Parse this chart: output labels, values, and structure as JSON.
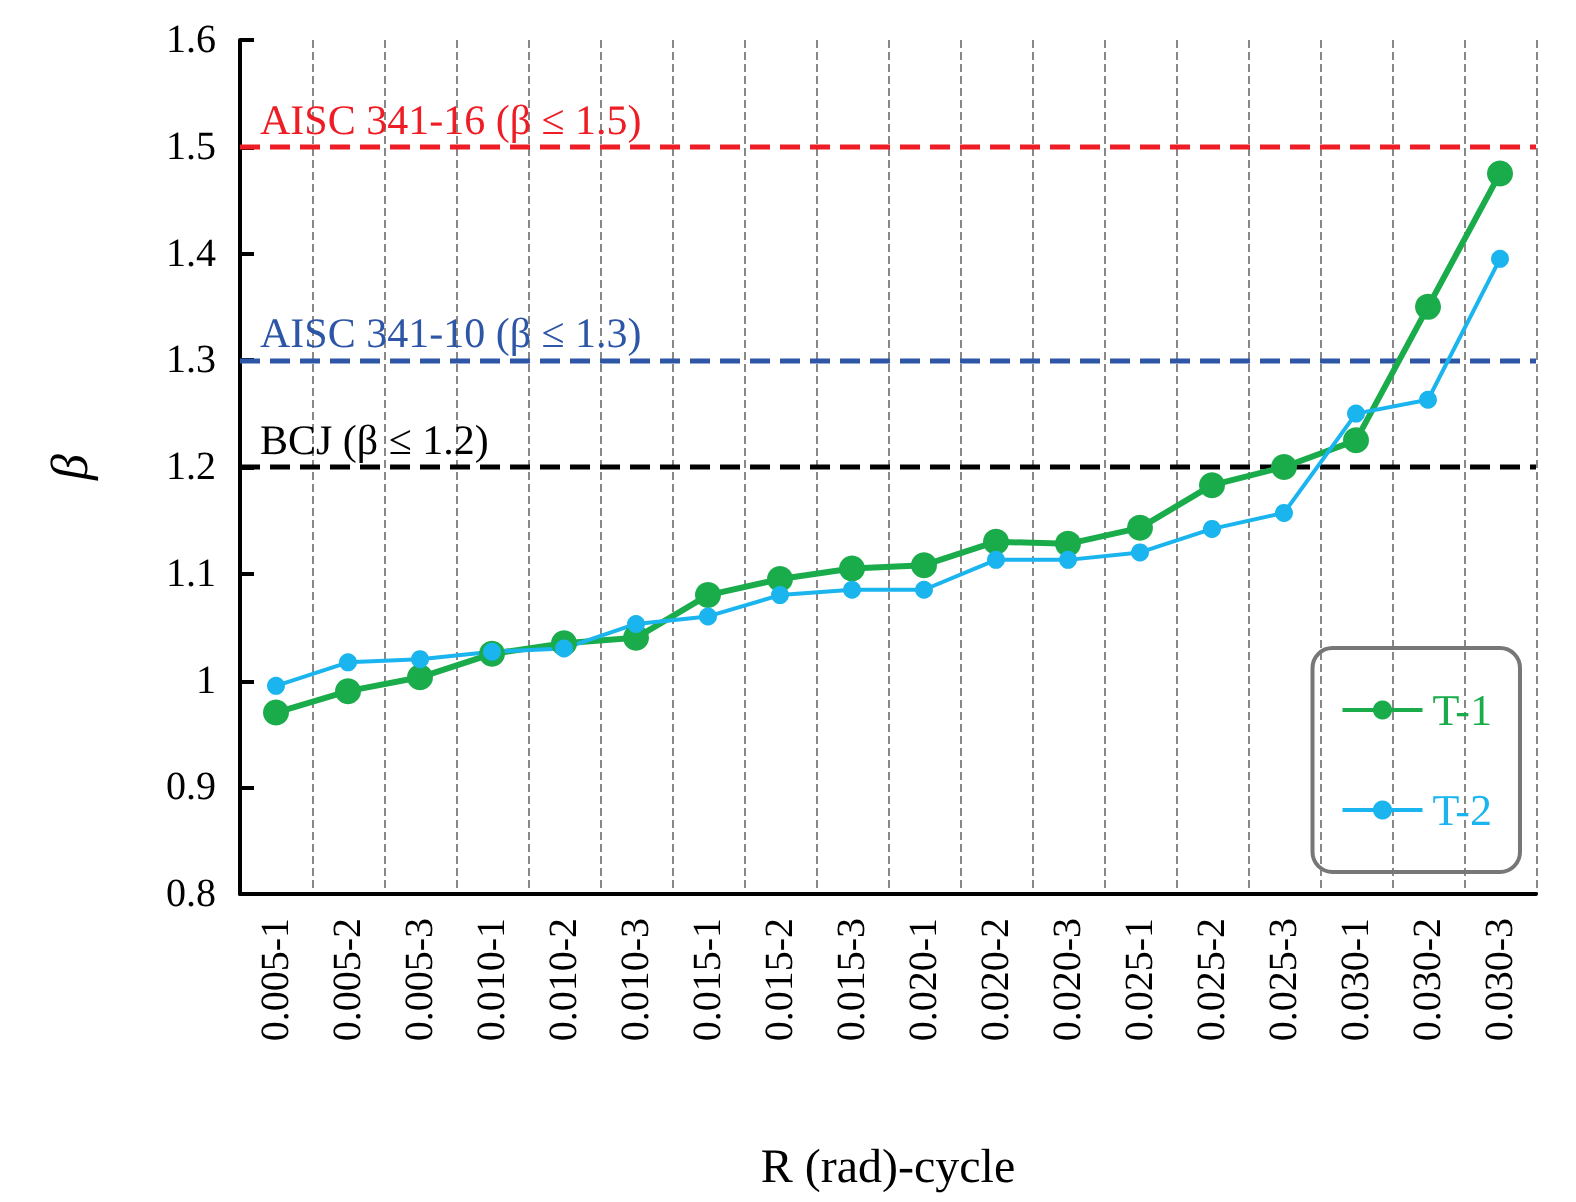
{
  "chart_data": {
    "type": "line",
    "xlabel": "R (rad)-cycle",
    "ylabel": "β",
    "categories": [
      "0.005-1",
      "0.005-2",
      "0.005-3",
      "0.010-1",
      "0.010-2",
      "0.010-3",
      "0.015-1",
      "0.015-2",
      "0.015-3",
      "0.020-1",
      "0.020-2",
      "0.020-3",
      "0.025-1",
      "0.025-2",
      "0.025-3",
      "0.030-1",
      "0.030-2",
      "0.030-3"
    ],
    "series": [
      {
        "name": "T-1",
        "color": "#1aac4a",
        "values": [
          0.97,
          0.99,
          1.003,
          1.025,
          1.035,
          1.04,
          1.08,
          1.095,
          1.105,
          1.108,
          1.13,
          1.128,
          1.143,
          1.183,
          1.2,
          1.225,
          1.35,
          1.475
        ]
      },
      {
        "name": "T-2",
        "color": "#1ab4ee",
        "values": [
          0.995,
          1.017,
          1.02,
          1.027,
          1.03,
          1.053,
          1.06,
          1.08,
          1.085,
          1.085,
          1.113,
          1.113,
          1.12,
          1.142,
          1.157,
          1.25,
          1.263,
          1.395
        ]
      }
    ],
    "ylim": [
      0.8,
      1.6
    ],
    "yticks": [
      0.8,
      0.9,
      1,
      1.1,
      1.2,
      1.3,
      1.4,
      1.5,
      1.6
    ],
    "ref_lines": [
      {
        "axis": "y",
        "value": 1.5,
        "label": "AISC 341-16 (β ≤ 1.5)",
        "color": "#ee1c24",
        "line_style": "dashed"
      },
      {
        "axis": "y",
        "value": 1.3,
        "label": "AISC 341-10 (β ≤ 1.3)",
        "color": "#2e56a6",
        "line_style": "dashed"
      },
      {
        "axis": "y",
        "value": 1.2,
        "label": "BCJ (β ≤ 1.2)",
        "color": "#000000",
        "line_style": "dashed"
      }
    ],
    "grid": "x",
    "legend": "bottom right",
    "marker": "circle",
    "line_style": "solid"
  }
}
